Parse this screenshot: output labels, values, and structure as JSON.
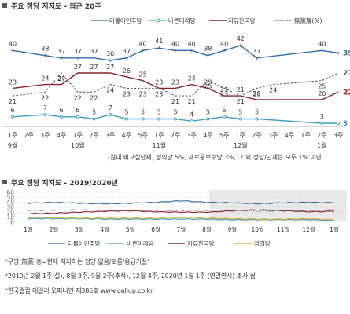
{
  "colors": {
    "minjoo": "#2f6ca8",
    "bareun": "#3d9fbd",
    "liberty": "#8b2323",
    "justice": "#e2b23a",
    "none": "#555555",
    "title_box": "#555555"
  },
  "chart_data": [
    {
      "type": "line",
      "title": "주요 정당 지지도 - 최근 20주",
      "x": [
        "1주",
        "2주",
        "3주",
        "4주",
        "1주",
        "2주",
        "3주",
        "4주",
        "5주",
        "1주",
        "2주",
        "3주",
        "4주",
        "5주",
        "1주",
        "2주",
        "3주",
        "4주",
        "1주",
        "2주",
        "3주"
      ],
      "month_labels": [
        "9월",
        "10월",
        "11월",
        "12월",
        "1월"
      ],
      "legend": [
        "더불어민주당",
        "바른미래당",
        "자유한국당",
        "無黨層(%)"
      ],
      "series": [
        {
          "name": "더불어민주당",
          "values": [
            40,
            null,
            38,
            37,
            37,
            37,
            36,
            37,
            40,
            41,
            40,
            40,
            38,
            40,
            42,
            37,
            null,
            null,
            null,
            40,
            39
          ]
        },
        {
          "name": "바른미래당",
          "values": [
            6,
            null,
            7,
            6,
            6,
            5,
            7,
            5,
            5,
            5,
            5,
            4,
            5,
            6,
            5,
            5,
            null,
            null,
            null,
            3,
            3
          ]
        },
        {
          "name": "자유한국당",
          "values": [
            23,
            null,
            24,
            24,
            27,
            27,
            27,
            26,
            25,
            23,
            23,
            24,
            23,
            21,
            21,
            20,
            null,
            null,
            null,
            20,
            22
          ]
        },
        {
          "name": "無黨層(%)",
          "values": [
            21,
            null,
            22,
            27,
            22,
            22,
            24,
            23,
            23,
            23,
            21,
            21,
            25,
            23,
            21,
            23,
            24,
            null,
            null,
            25,
            27
          ]
        }
      ],
      "footnote": "(원내 비교섭단체) 정의당 5%, 새로운보수당 3%, 그 외 정당/단체는 모두 1% 미만"
    },
    {
      "type": "line",
      "title": "주요 정당 지지도 - 2019/2020년",
      "categories": [
        "1월",
        "2월",
        "3월",
        "4월",
        "5월",
        "6월",
        "7월",
        "8월",
        "9월",
        "10월",
        "11월",
        "12월",
        "1월"
      ],
      "yticks": [
        0,
        10,
        20,
        30,
        40,
        50,
        60
      ],
      "ylim": [
        0,
        60
      ],
      "legend": [
        "더불어민주당",
        "바른미래당",
        "자유한국당",
        "정의당"
      ],
      "series": [
        {
          "name": "더불어민주당",
          "values": [
            38,
            40,
            38,
            37,
            38,
            40,
            43,
            40,
            39,
            37,
            39,
            40,
            39
          ]
        },
        {
          "name": "바른미래당",
          "values": [
            7,
            7,
            7,
            6,
            6,
            6,
            6,
            6,
            5,
            5,
            5,
            5,
            3
          ]
        },
        {
          "name": "자유한국당",
          "values": [
            17,
            18,
            20,
            22,
            23,
            21,
            20,
            20,
            23,
            25,
            23,
            21,
            22
          ]
        },
        {
          "name": "정의당",
          "values": [
            9,
            9,
            8,
            8,
            8,
            8,
            9,
            8,
            7,
            6,
            6,
            7,
            5
          ]
        },
        {
          "name": "無黨層",
          "values": [
            23,
            24,
            25,
            24,
            23,
            24,
            23,
            24,
            24,
            22,
            23,
            23,
            25
          ]
        }
      ]
    }
  ],
  "notes": [
    "*무당(無黨)층=현재 지지하는 정당 없음/모름/응답거절'",
    "*2019년 2월 1주(설), 8월 3주, 9월 2주(추석), 12월 4주, 2020년 1월 1주 (연말연시) 조사 쉼",
    "*한국갤럽 데일리 오피니언 제385호 www.gallup.co.kr"
  ]
}
